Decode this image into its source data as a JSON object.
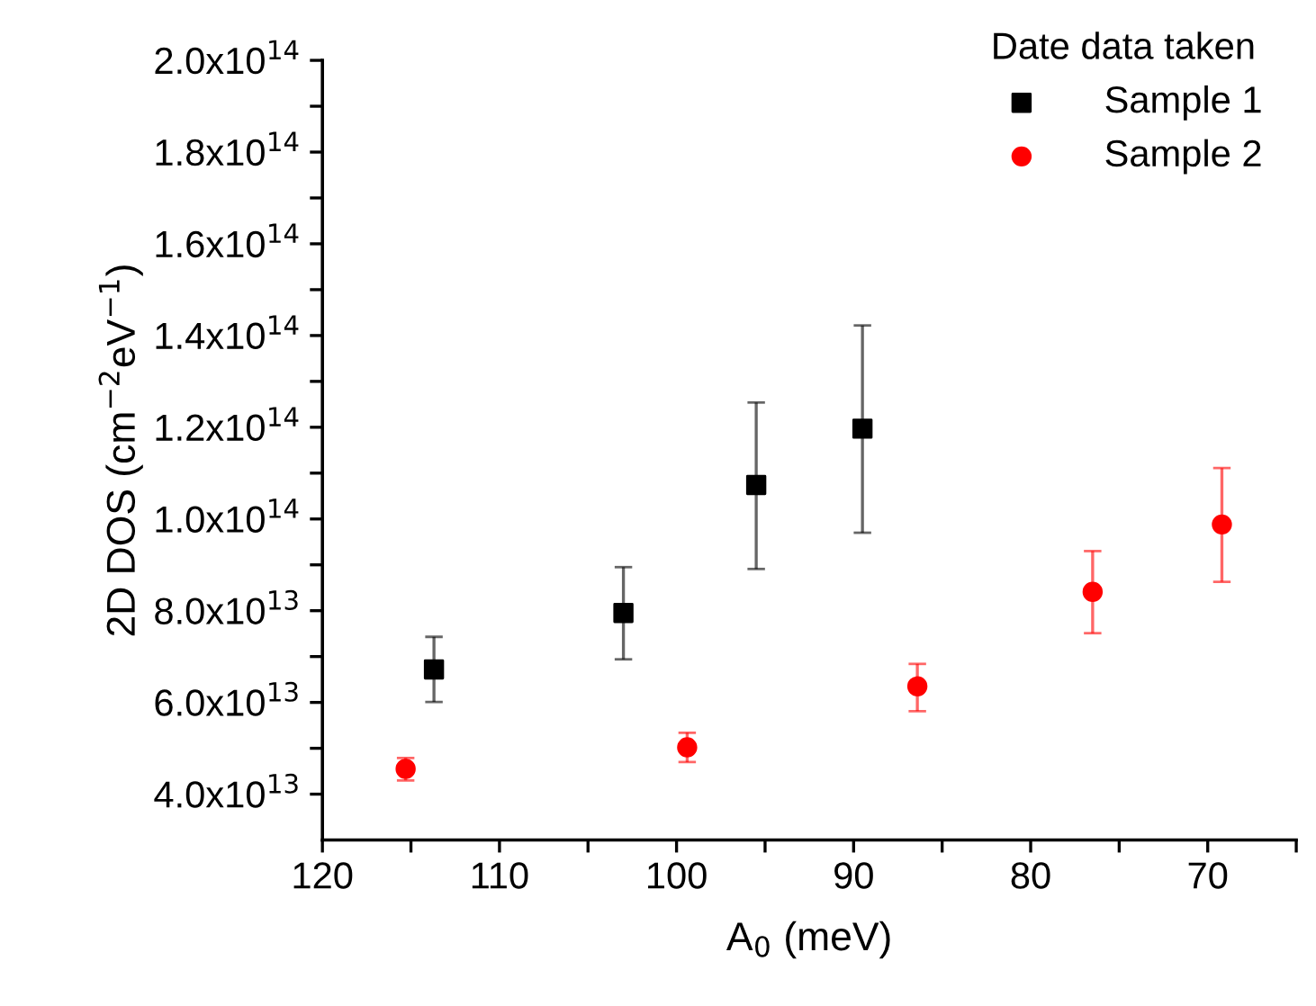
{
  "chart_data": {
    "type": "scatter",
    "xlabel": "A$_{0}$ (meV)",
    "ylabel": "2D DOS (cm$^{−2}$eV$^{−1}$)",
    "legend_title": "Date data taken",
    "legend": "top right",
    "grid": false,
    "xlim": [
      120,
      65
    ],
    "ylim": [
      30000000000000.0,
      200000000000000.0
    ],
    "xticks": [
      120,
      110,
      100,
      90,
      80,
      70,
      {
        "value": 115,
        "label": null
      },
      {
        "value": 105,
        "label": null
      },
      {
        "value": 95,
        "label": null
      },
      {
        "value": 85,
        "label": null
      },
      {
        "value": 75,
        "label": null
      },
      {
        "value": 65,
        "label": null
      }
    ],
    "yticks": [
      {
        "value": 40000000000000.0,
        "label": "4.0x10$^{13}$"
      },
      {
        "value": 60000000000000.0,
        "label": "6.0x10$^{13}$"
      },
      {
        "value": 80000000000000.0,
        "label": "8.0x10$^{13}$"
      },
      {
        "value": 100000000000000.0,
        "label": "1.0x10$^{14}$"
      },
      {
        "value": 120000000000000.0,
        "label": "1.2x10$^{14}$"
      },
      {
        "value": 140000000000000.0,
        "label": "1.4x10$^{14}$"
      },
      {
        "value": 160000000000000.0,
        "label": "1.6x10$^{14}$"
      },
      {
        "value": 180000000000000.0,
        "label": "1.8x10$^{14}$"
      },
      {
        "value": 200000000000000.0,
        "label": "2.0x10$^{14}$"
      },
      {
        "value": 50000000000000.0,
        "label": null
      },
      {
        "value": 70000000000000.0,
        "label": null
      },
      {
        "value": 90000000000000.0,
        "label": null
      },
      {
        "value": 110000000000000.0,
        "label": null
      },
      {
        "value": 130000000000000.0,
        "label": null
      },
      {
        "value": 150000000000000.0,
        "label": null
      },
      {
        "value": 170000000000000.0,
        "label": null
      },
      {
        "value": 190000000000000.0,
        "label": null
      }
    ],
    "series": [
      {
        "name": "Sample 1",
        "color": "#000000",
        "marker": "square",
        "x": [
          113.7,
          103.0,
          95.5,
          89.5
        ],
        "values": [
          67200000000000.0,
          79500000000000.0,
          107400000000000.0,
          119700000000000.0
        ],
        "errors": [
          [
            60100000000000.0,
            74300000000000.0
          ],
          [
            69400000000000.0,
            89500000000000.0
          ],
          [
            89100000000000.0,
            125400000000000.0
          ],
          [
            97000000000000.0,
            142200000000000.0
          ]
        ]
      },
      {
        "name": "Sample 2",
        "color": "#ff0000",
        "marker": "circle",
        "x": [
          115.3,
          99.4,
          86.4,
          76.5,
          69.2
        ],
        "values": [
          45500000000000.0,
          50200000000000.0,
          63500000000000.0,
          84100000000000.0,
          98800000000000.0
        ],
        "errors": [
          [
            43000000000000.0,
            47900000000000.0
          ],
          [
            47000000000000.0,
            53400000000000.0
          ],
          [
            58100000000000.0,
            68400000000000.0
          ],
          [
            75100000000000.0,
            93000000000000.0
          ],
          [
            86300000000000.0,
            111100000000000.0
          ]
        ]
      }
    ]
  }
}
